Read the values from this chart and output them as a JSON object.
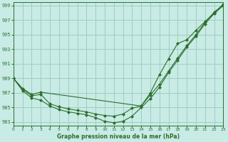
{
  "title": "Graphe pression niveau de la mer (hPa)",
  "bg_color": "#c8ebe5",
  "grid_color": "#9ecfbf",
  "line_color": "#2d6e2d",
  "xmin": 0,
  "xmax": 23,
  "ymin": 982.5,
  "ymax": 999.5,
  "ytick_vals": [
    983,
    985,
    987,
    989,
    991,
    993,
    995,
    997,
    999
  ],
  "xtick_vals": [
    0,
    1,
    2,
    3,
    4,
    5,
    6,
    7,
    8,
    9,
    10,
    11,
    12,
    13,
    14,
    15,
    16,
    17,
    18,
    19,
    20,
    21,
    22,
    23
  ],
  "curve_bottom_x": [
    0,
    1,
    2,
    3,
    4,
    5,
    6,
    7,
    8,
    9,
    10,
    11,
    12,
    13,
    14,
    15,
    16,
    17,
    18,
    19,
    20,
    21,
    22,
    23
  ],
  "curve_bottom_y": [
    989.0,
    987.3,
    986.3,
    986.0,
    985.2,
    984.7,
    984.4,
    984.2,
    984.0,
    983.6,
    983.1,
    982.9,
    983.1,
    983.8,
    985.0,
    986.2,
    987.8,
    989.8,
    991.5,
    993.3,
    994.8,
    996.5,
    997.9,
    999.0
  ],
  "curve_mid_x": [
    0,
    1,
    2,
    3,
    4,
    5,
    6,
    7,
    8,
    9,
    10,
    11,
    12,
    13,
    14,
    15,
    16,
    17,
    18,
    19,
    20,
    21,
    22,
    23
  ],
  "curve_mid_y": [
    989.0,
    987.5,
    986.6,
    986.8,
    985.5,
    985.1,
    984.8,
    984.6,
    984.4,
    984.1,
    983.9,
    983.8,
    984.1,
    984.9,
    985.2,
    986.7,
    988.2,
    990.0,
    991.8,
    993.5,
    995.0,
    996.7,
    998.1,
    999.1
  ],
  "curve_top_x": [
    0,
    1,
    2,
    3,
    14,
    15,
    16,
    17,
    18,
    19,
    20,
    21,
    22,
    23
  ],
  "curve_top_y": [
    989.0,
    987.6,
    986.8,
    987.1,
    985.2,
    987.0,
    989.5,
    991.7,
    993.8,
    994.3,
    995.6,
    996.8,
    998.0,
    999.2
  ]
}
